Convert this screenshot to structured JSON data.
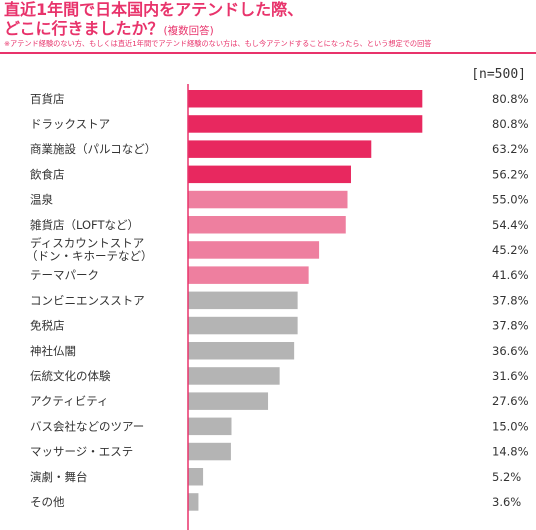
{
  "header": {
    "title_line1": "直近1年間で日本国内をアテンドした際、",
    "title_line2": "どこに行きましたか？",
    "title_sub": "(複数回答)",
    "note": "※アテンド経験のない方、もしくは直近1年間でアテンド経験のない方は、もし今アテンドすることになったら、という想定での回答",
    "n_label": "[n=500]"
  },
  "colors": {
    "dark_pink": "#e8285f",
    "light_pink": "#ee7f9f",
    "gray": "#b4b4b4",
    "axis": "#e8336b"
  },
  "chart_data": {
    "type": "bar",
    "orientation": "horizontal",
    "xlim": [
      0,
      100
    ],
    "categories": [
      "百貨店",
      "ドラックストア",
      "商業施設（パルコなど）",
      "飲食店",
      "温泉",
      "雑貨店（LOFTなど）",
      "ディスカウントストア\n（ドン・キホーテなど）",
      "テーマパーク",
      "コンビニエンスストア",
      "免税店",
      "神社仏閣",
      "伝統文化の体験",
      "アクティビティ",
      "バス会社などのツアー",
      "マッサージ・エステ",
      "演劇・舞台",
      "その他"
    ],
    "values": [
      80.8,
      80.8,
      63.2,
      56.2,
      55.0,
      54.4,
      45.2,
      41.6,
      37.8,
      37.8,
      36.6,
      31.6,
      27.6,
      15.0,
      14.8,
      5.2,
      3.6
    ],
    "value_labels": [
      "80.8%",
      "80.8%",
      "63.2%",
      "56.2%",
      "55.0%",
      "54.4%",
      "45.2%",
      "41.6%",
      "37.8%",
      "37.8%",
      "36.6%",
      "31.6%",
      "27.6%",
      "15.0%",
      "14.8%",
      "5.2%",
      "3.6%"
    ],
    "color_groups": [
      "dark",
      "dark",
      "dark",
      "dark",
      "light",
      "light",
      "light",
      "light",
      "gray",
      "gray",
      "gray",
      "gray",
      "gray",
      "gray",
      "gray",
      "gray",
      "gray"
    ]
  }
}
